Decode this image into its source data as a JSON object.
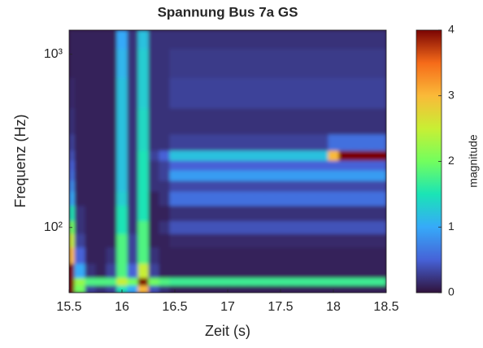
{
  "chart_data": {
    "type": "heatmap",
    "title": "Spannung Bus 7a GS",
    "xlabel": "Zeit (s)",
    "ylabel": "Frequenz (Hz)",
    "yscale": "log",
    "x": [
      15.5,
      15.6,
      15.7,
      15.8,
      15.9,
      16.0,
      16.1,
      16.2,
      16.3,
      16.4,
      16.5,
      16.6,
      16.7,
      16.8,
      16.9,
      17.0,
      17.1,
      17.2,
      17.3,
      17.4,
      17.5,
      17.6,
      17.7,
      17.8,
      17.9,
      18.0,
      18.1,
      18.2,
      18.3,
      18.4,
      18.5
    ],
    "y": [
      45,
      48,
      55,
      70,
      85,
      100,
      120,
      150,
      175,
      200,
      230,
      260,
      300,
      400,
      600,
      900,
      1300
    ],
    "values": [
      [
        4,
        2,
        0.3,
        0.2,
        0.3,
        1.5,
        1,
        3,
        0.4,
        0.2,
        0.1,
        0.1,
        0.1,
        0.1,
        0.1,
        0.1,
        0.1,
        0.1,
        0.1,
        0.1,
        0.1,
        0.1,
        0.1,
        0.1,
        0.1,
        0.1,
        0.1,
        0.1,
        0.1,
        0.1,
        0.1
      ],
      [
        4,
        2.2,
        1.8,
        1.8,
        1.8,
        2.5,
        2,
        4,
        2,
        1.8,
        1.7,
        1.7,
        1.7,
        1.7,
        1.7,
        1.7,
        1.7,
        1.7,
        1.7,
        1.7,
        1.7,
        1.7,
        1.7,
        1.7,
        1.7,
        1.7,
        1.7,
        1.7,
        1.7,
        1.7,
        1.7
      ],
      [
        4,
        1,
        0.2,
        0.1,
        0.3,
        1.8,
        0.5,
        2.5,
        0.3,
        0.1,
        0.1,
        0.1,
        0.1,
        0.1,
        0.1,
        0.1,
        0.1,
        0.1,
        0.1,
        0.1,
        0.1,
        0.1,
        0.1,
        0.1,
        0.1,
        0.1,
        0.1,
        0.1,
        0.1,
        0.1,
        0.1
      ],
      [
        3,
        0.5,
        0.1,
        0.1,
        0.2,
        1.8,
        0.3,
        1.8,
        0.2,
        0.1,
        0.1,
        0.1,
        0.1,
        0.1,
        0.1,
        0.1,
        0.1,
        0.1,
        0.1,
        0.1,
        0.1,
        0.1,
        0.1,
        0.1,
        0.1,
        0.1,
        0.1,
        0.1,
        0.1,
        0.1,
        0.1
      ],
      [
        2.5,
        0.3,
        0.1,
        0.1,
        0.1,
        1.8,
        0.3,
        1.8,
        0.1,
        0.1,
        0.15,
        0.15,
        0.15,
        0.15,
        0.15,
        0.15,
        0.15,
        0.15,
        0.15,
        0.15,
        0.15,
        0.15,
        0.15,
        0.15,
        0.15,
        0.15,
        0.15,
        0.15,
        0.15,
        0.15,
        0.15
      ],
      [
        2,
        0.2,
        0.1,
        0.1,
        0.1,
        1.5,
        0.2,
        1.8,
        0.1,
        0.2,
        0.4,
        0.4,
        0.4,
        0.4,
        0.4,
        0.4,
        0.4,
        0.4,
        0.4,
        0.4,
        0.4,
        0.4,
        0.4,
        0.4,
        0.4,
        0.4,
        0.4,
        0.4,
        0.4,
        0.4,
        0.4
      ],
      [
        1.5,
        0.2,
        0.1,
        0.1,
        0.1,
        1.5,
        0.2,
        1.5,
        0.1,
        0.1,
        0.2,
        0.2,
        0.2,
        0.2,
        0.2,
        0.2,
        0.2,
        0.2,
        0.2,
        0.2,
        0.2,
        0.2,
        0.2,
        0.2,
        0.2,
        0.2,
        0.2,
        0.2,
        0.2,
        0.2,
        0.2
      ],
      [
        1,
        0.1,
        0.1,
        0.1,
        0.1,
        1.3,
        0.2,
        1.5,
        0.1,
        0.2,
        0.6,
        0.6,
        0.6,
        0.6,
        0.6,
        0.6,
        0.6,
        0.6,
        0.6,
        0.6,
        0.6,
        0.6,
        0.6,
        0.6,
        0.6,
        0.6,
        0.6,
        0.6,
        0.6,
        0.6,
        0.6
      ],
      [
        0.8,
        0.1,
        0.1,
        0.1,
        0.1,
        1.2,
        0.2,
        1.5,
        0.2,
        0.2,
        0.35,
        0.35,
        0.35,
        0.35,
        0.35,
        0.35,
        0.35,
        0.35,
        0.35,
        0.35,
        0.35,
        0.35,
        0.35,
        0.35,
        0.35,
        0.35,
        0.35,
        0.35,
        0.35,
        0.35,
        0.35
      ],
      [
        0.6,
        0.1,
        0.1,
        0.1,
        0.1,
        1.2,
        0.2,
        1.5,
        0.2,
        0.3,
        0.9,
        0.9,
        0.9,
        0.9,
        0.9,
        0.9,
        0.9,
        0.9,
        0.9,
        0.9,
        0.9,
        0.9,
        0.9,
        0.9,
        0.9,
        0.9,
        0.9,
        0.9,
        0.9,
        0.9,
        0.9
      ],
      [
        0.5,
        0.1,
        0.1,
        0.1,
        0.1,
        1.2,
        0.2,
        1.5,
        0.2,
        0.3,
        0.5,
        0.5,
        0.5,
        0.5,
        0.5,
        0.5,
        0.5,
        0.5,
        0.5,
        0.5,
        0.5,
        0.5,
        0.5,
        0.5,
        0.5,
        0.5,
        0.5,
        0.5,
        0.5,
        0.5,
        0.5
      ],
      [
        0.4,
        0.1,
        0.1,
        0.1,
        0.1,
        1.2,
        0.2,
        1.5,
        0.3,
        0.5,
        1.2,
        1.2,
        1.2,
        1.2,
        1.2,
        1.2,
        1.2,
        1.2,
        1.2,
        1.2,
        1.2,
        1.2,
        1.2,
        1.2,
        1.2,
        3,
        4,
        4,
        4,
        4,
        4
      ],
      [
        0.3,
        0.1,
        0.1,
        0.1,
        0.1,
        1.2,
        0.2,
        1.4,
        0.2,
        0.2,
        0.3,
        0.3,
        0.3,
        0.3,
        0.3,
        0.3,
        0.3,
        0.3,
        0.3,
        0.3,
        0.3,
        0.3,
        0.3,
        0.3,
        0.3,
        0.6,
        0.6,
        0.6,
        0.6,
        0.6,
        0.6
      ],
      [
        0.2,
        0.1,
        0.1,
        0.1,
        0.1,
        1.2,
        0.2,
        1.4,
        0.2,
        0.2,
        0.2,
        0.2,
        0.2,
        0.2,
        0.2,
        0.2,
        0.2,
        0.2,
        0.2,
        0.2,
        0.2,
        0.2,
        0.2,
        0.2,
        0.2,
        0.2,
        0.2,
        0.2,
        0.2,
        0.2,
        0.2
      ],
      [
        0.15,
        0.1,
        0.1,
        0.1,
        0.1,
        1.2,
        0.2,
        1.3,
        0.2,
        0.2,
        0.3,
        0.3,
        0.3,
        0.3,
        0.3,
        0.3,
        0.3,
        0.3,
        0.3,
        0.3,
        0.3,
        0.3,
        0.3,
        0.3,
        0.3,
        0.3,
        0.3,
        0.3,
        0.3,
        0.3,
        0.3
      ],
      [
        0.1,
        0.1,
        0.1,
        0.1,
        0.1,
        1.1,
        0.2,
        1.3,
        0.2,
        0.2,
        0.25,
        0.25,
        0.25,
        0.25,
        0.25,
        0.25,
        0.25,
        0.25,
        0.25,
        0.25,
        0.25,
        0.25,
        0.25,
        0.25,
        0.25,
        0.25,
        0.25,
        0.25,
        0.25,
        0.25,
        0.25
      ],
      [
        0.1,
        0.1,
        0.1,
        0.1,
        0.1,
        1,
        0.2,
        1.2,
        0.2,
        0.2,
        0.2,
        0.2,
        0.2,
        0.2,
        0.2,
        0.2,
        0.2,
        0.2,
        0.2,
        0.2,
        0.2,
        0.2,
        0.2,
        0.2,
        0.2,
        0.2,
        0.2,
        0.2,
        0.2,
        0.2,
        0.2
      ]
    ],
    "xlim": [
      15.5,
      18.5
    ],
    "ylim": [
      42,
      1380
    ],
    "xticks": [
      15.5,
      16,
      16.5,
      17,
      17.5,
      18,
      18.5
    ],
    "yticks": [
      {
        "value": 100,
        "label": "10²"
      },
      {
        "value": 1000,
        "label": "10³"
      }
    ],
    "colormap": [
      "#30123b",
      "#4662d7",
      "#36aaf9",
      "#1ae4b6",
      "#72fe5e",
      "#c8ef34",
      "#faba39",
      "#f66b19",
      "#7a0403"
    ],
    "colorbar": {
      "label": "magnitude",
      "clim": [
        0,
        4
      ],
      "ticks": [
        0,
        1,
        2,
        3,
        4
      ]
    }
  }
}
